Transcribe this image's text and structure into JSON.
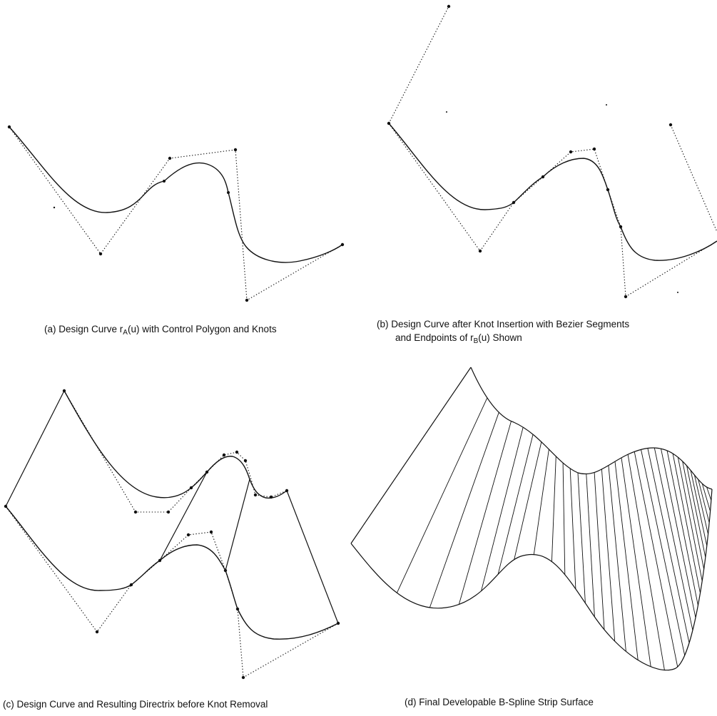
{
  "captions": {
    "a": {
      "prefix": "(a) Design Curve r",
      "sub": "A",
      "suffix": "(u) with Control Polygon and Knots"
    },
    "b": {
      "line1": "(b) Design Curve after Knot Insertion with Bezier Segments",
      "line2_prefix": "and Endpoints of r",
      "line2_sub": "B",
      "line2_suffix": "(u) Shown"
    },
    "c": {
      "text": "(c) Design Curve and Resulting Directrix before Knot Removal"
    },
    "d": {
      "text": "(d) Final Developable B-Spline Strip Surface"
    }
  }
}
